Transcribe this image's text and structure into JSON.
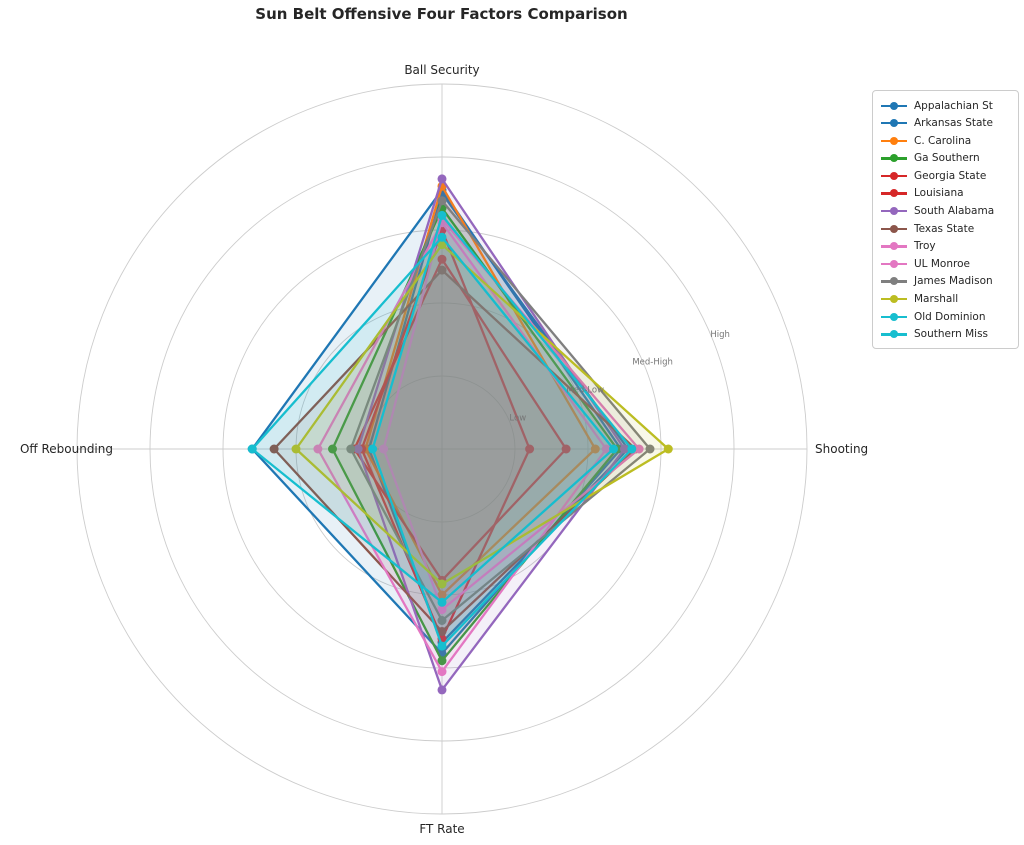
{
  "figure": {
    "title": "Sun Belt Offensive Four Factors Comparison"
  },
  "chart_data": {
    "type": "radar",
    "title": "Sun Belt Offensive Four Factors Comparison",
    "axes": [
      "Ball Security",
      "Shooting",
      "FT Rate",
      "Off Rebounding"
    ],
    "radial_ticks": {
      "values": [
        0.2,
        0.4,
        0.6,
        0.8
      ],
      "labels": [
        "Low",
        "Med-Low",
        "Med-High",
        "High"
      ],
      "label_angle_deg": 22.5
    },
    "rlim": [
      0,
      1
    ],
    "grid": true,
    "legend_position": "upper right",
    "series": [
      {
        "name": "Appalachian St",
        "color": "#1f77b4",
        "values": [
          0.71,
          0.49,
          0.56,
          0.52
        ]
      },
      {
        "name": "Arkansas State",
        "color": "#1f77b4",
        "values": [
          0.7,
          0.51,
          0.53,
          0.2
        ]
      },
      {
        "name": "C. Carolina",
        "color": "#ff7f0e",
        "values": [
          0.72,
          0.42,
          0.4,
          0.21
        ]
      },
      {
        "name": "Ga Southern",
        "color": "#2ca02c",
        "values": [
          0.66,
          0.48,
          0.58,
          0.3
        ]
      },
      {
        "name": "Georgia State",
        "color": "#d62728",
        "values": [
          0.6,
          0.24,
          0.52,
          0.22
        ]
      },
      {
        "name": "Louisiana",
        "color": "#d62728",
        "values": [
          0.52,
          0.34,
          0.36,
          0.24
        ]
      },
      {
        "name": "South Alabama",
        "color": "#9467bd",
        "values": [
          0.74,
          0.5,
          0.66,
          0.23
        ]
      },
      {
        "name": "Texas State",
        "color": "#8c564b",
        "values": [
          0.49,
          0.53,
          0.5,
          0.46
        ]
      },
      {
        "name": "Troy",
        "color": "#e377c2",
        "values": [
          0.62,
          0.45,
          0.61,
          0.34
        ]
      },
      {
        "name": "UL Monroe",
        "color": "#e377c2",
        "values": [
          0.63,
          0.54,
          0.44,
          0.16
        ]
      },
      {
        "name": "James Madison",
        "color": "#7f7f7f",
        "values": [
          0.68,
          0.57,
          0.47,
          0.25
        ]
      },
      {
        "name": "Marshall",
        "color": "#bcbd22",
        "values": [
          0.56,
          0.62,
          0.37,
          0.4
        ]
      },
      {
        "name": "Old Dominion",
        "color": "#17becf",
        "values": [
          0.58,
          0.47,
          0.42,
          0.52
        ]
      },
      {
        "name": "Southern Miss",
        "color": "#17becf",
        "values": [
          0.64,
          0.52,
          0.54,
          0.19
        ]
      }
    ]
  },
  "style": {
    "background": "#ffffff",
    "grid_color": "#cccccc",
    "axis_label_color": "#262626",
    "tick_label_color": "#767676",
    "title_color": "#262626",
    "fill_opacity": 0.1,
    "line_width": 2.3,
    "marker_radius": 4.5
  }
}
